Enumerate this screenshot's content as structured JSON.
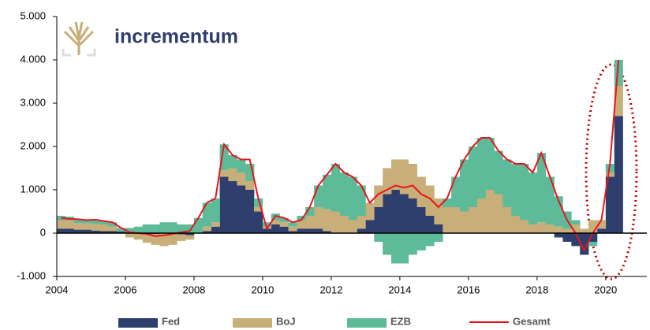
{
  "chart_data": {
    "type": "bar",
    "stacked": true,
    "logo_text": "incrementum",
    "x": [
      2004,
      2004.25,
      2004.5,
      2004.75,
      2005,
      2005.25,
      2005.5,
      2005.75,
      2006,
      2006.25,
      2006.5,
      2006.75,
      2007,
      2007.25,
      2007.5,
      2007.75,
      2008,
      2008.25,
      2008.5,
      2008.75,
      2009,
      2009.25,
      2009.5,
      2009.75,
      2010,
      2010.25,
      2010.5,
      2010.75,
      2011,
      2011.25,
      2011.5,
      2011.75,
      2012,
      2012.25,
      2012.5,
      2012.75,
      2013,
      2013.25,
      2013.5,
      2013.75,
      2014,
      2014.25,
      2014.5,
      2014.75,
      2015,
      2015.25,
      2015.5,
      2015.75,
      2016,
      2016.25,
      2016.5,
      2016.75,
      2017,
      2017.25,
      2017.5,
      2017.75,
      2018,
      2018.25,
      2018.5,
      2018.75,
      2019,
      2019.25,
      2019.5,
      2019.75,
      2020,
      2020.25
    ],
    "series": [
      {
        "name": "Fed",
        "color": "#2e3f6e",
        "values": [
          100,
          100,
          80,
          80,
          60,
          50,
          50,
          40,
          20,
          0,
          -20,
          -20,
          0,
          -20,
          -30,
          -50,
          0,
          50,
          150,
          1300,
          1200,
          1100,
          1000,
          500,
          100,
          200,
          150,
          50,
          100,
          100,
          100,
          50,
          0,
          0,
          0,
          100,
          300,
          600,
          900,
          1000,
          900,
          800,
          600,
          400,
          200,
          0,
          0,
          0,
          0,
          0,
          0,
          0,
          0,
          0,
          0,
          0,
          0,
          0,
          -100,
          -200,
          -300,
          -500,
          -200,
          100,
          1300,
          2700
        ]
      },
      {
        "name": "BoJ",
        "color": "#c8ae78",
        "values": [
          200,
          200,
          150,
          150,
          150,
          150,
          100,
          0,
          -100,
          -150,
          -200,
          -250,
          -300,
          -250,
          -150,
          -100,
          0,
          100,
          100,
          150,
          300,
          300,
          200,
          100,
          50,
          100,
          100,
          100,
          200,
          300,
          500,
          500,
          500,
          400,
          300,
          300,
          400,
          500,
          600,
          700,
          800,
          800,
          700,
          700,
          600,
          600,
          600,
          500,
          600,
          800,
          1000,
          900,
          600,
          400,
          300,
          200,
          250,
          200,
          150,
          100,
          200,
          100,
          300,
          200,
          100,
          700
        ]
      },
      {
        "name": "EZB",
        "color": "#5dbb9a",
        "values": [
          100,
          80,
          100,
          80,
          100,
          80,
          100,
          80,
          100,
          150,
          200,
          200,
          250,
          250,
          200,
          200,
          350,
          550,
          550,
          600,
          300,
          300,
          400,
          200,
          100,
          150,
          100,
          100,
          100,
          200,
          500,
          800,
          1100,
          1000,
          1000,
          700,
          0,
          -200,
          -500,
          -700,
          -700,
          -500,
          -400,
          -300,
          -200,
          200,
          700,
          1200,
          1400,
          1400,
          1200,
          1000,
          1100,
          1200,
          1300,
          1200,
          1600,
          1100,
          700,
          400,
          100,
          0,
          -100,
          0,
          200,
          600
        ]
      },
      {
        "name": "Gesamt",
        "color": "#e8141c",
        "type": "line",
        "values": [
          350,
          330,
          320,
          300,
          310,
          280,
          250,
          120,
          20,
          0,
          -20,
          -70,
          -50,
          -20,
          20,
          50,
          350,
          700,
          800,
          2050,
          1800,
          1700,
          1700,
          800,
          100,
          400,
          350,
          250,
          300,
          600,
          1100,
          1350,
          1600,
          1400,
          1300,
          1100,
          700,
          900,
          1000,
          1100,
          1050,
          1100,
          900,
          800,
          600,
          800,
          1300,
          1700,
          2000,
          2200,
          2200,
          1900,
          1700,
          1600,
          1600,
          1400,
          1850,
          1300,
          750,
          300,
          0,
          -400,
          0,
          300,
          1600,
          4000
        ]
      }
    ],
    "xlim": [
      2004,
      2021.2
    ],
    "xticks": [
      2004,
      2006,
      2008,
      2010,
      2012,
      2014,
      2016,
      2018,
      2020
    ],
    "ylim": [
      -1000,
      5000
    ],
    "yticks": [
      {
        "value": -1000,
        "label": "-1.000"
      },
      0,
      {
        "value": 1000,
        "label": "1.000"
      },
      {
        "value": 2000,
        "label": "2.000"
      },
      {
        "value": 3000,
        "label": "3.000"
      },
      {
        "value": 4000,
        "label": "4.000"
      },
      {
        "value": 5000,
        "label": "5.000"
      }
    ]
  }
}
